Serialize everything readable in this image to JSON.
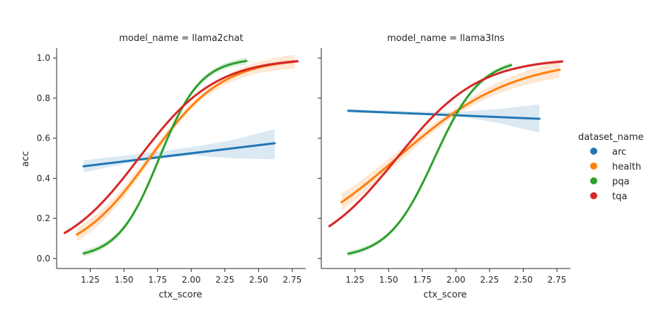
{
  "chart_data": {
    "type": "line",
    "facet_variable": "model_name",
    "hue_variable": "dataset_name",
    "xlabel": "ctx_score",
    "ylabel": "acc",
    "xlim": [
      1.0,
      2.85
    ],
    "ylim": [
      -0.05,
      1.05
    ],
    "xticks": [
      1.25,
      1.5,
      1.75,
      2.0,
      2.25,
      2.5,
      2.75
    ],
    "xtick_labels": [
      "1.25",
      "1.50",
      "1.75",
      "2.00",
      "2.25",
      "2.50",
      "2.75"
    ],
    "yticks": [
      0.0,
      0.2,
      0.4,
      0.6,
      0.8,
      1.0
    ],
    "ytick_labels": [
      "0.0",
      "0.2",
      "0.4",
      "0.6",
      "0.8",
      "1.0"
    ],
    "grid": false,
    "legend": {
      "title": "dataset_name",
      "placement": "right",
      "entries": [
        {
          "label": "arc",
          "color": "#1f77b4"
        },
        {
          "label": "health",
          "color": "#ff7f0e"
        },
        {
          "label": "pqa",
          "color": "#2ca02c"
        },
        {
          "label": "tqa",
          "color": "#d62728"
        }
      ]
    },
    "panels": [
      {
        "title": "model_name = llama2chat",
        "series": [
          {
            "name": "arc",
            "color": "#1f77b4",
            "kind": "linear",
            "x": [
              1.2,
              2.62
            ],
            "y": [
              0.46,
              0.575
            ],
            "band": [
              [
                1.2,
                0.49,
                0.43
              ],
              [
                1.6,
                0.52,
                0.485
              ],
              [
                2.0,
                0.555,
                0.515
              ],
              [
                2.3,
                0.59,
                0.5
              ],
              [
                2.62,
                0.645,
                0.495
              ]
            ]
          },
          {
            "name": "health",
            "color": "#ff7f0e",
            "kind": "logistic",
            "k": 3.7,
            "x0": 1.69,
            "x": [
              1.15,
              2.77
            ],
            "band_halfwidth": 0.025
          },
          {
            "name": "pqa",
            "color": "#2ca02c",
            "kind": "logistic",
            "k": 6.5,
            "x0": 1.762,
            "x": [
              1.2,
              2.41
            ],
            "band_halfwidth": 0.012
          },
          {
            "name": "tqa",
            "color": "#d62728",
            "kind": "logistic",
            "k": 3.5,
            "x0": 1.61,
            "x": [
              1.06,
              2.79
            ],
            "band_halfwidth": 0.006
          }
        ]
      },
      {
        "title": "model_name = llama3Ins",
        "series": [
          {
            "name": "arc",
            "color": "#1f77b4",
            "kind": "linear",
            "x": [
              1.2,
              2.62
            ],
            "y": [
              0.737,
              0.697
            ],
            "band": [
              [
                1.2,
                0.745,
                0.728
              ],
              [
                1.8,
                0.732,
                0.718
              ],
              [
                2.0,
                0.73,
                0.712
              ],
              [
                2.3,
                0.745,
                0.678
              ],
              [
                2.62,
                0.768,
                0.628
              ]
            ]
          },
          {
            "name": "health",
            "color": "#ff7f0e",
            "kind": "logistic",
            "k": 2.3,
            "x0": 1.56,
            "x": [
              1.15,
              2.77
            ],
            "band_halfwidth": 0.03
          },
          {
            "name": "pqa",
            "color": "#2ca02c",
            "kind": "logistic",
            "k": 5.8,
            "x0": 1.84,
            "x": [
              1.2,
              2.41
            ],
            "band_halfwidth": 0.01
          },
          {
            "name": "tqa",
            "color": "#d62728",
            "kind": "logistic",
            "k": 3.3,
            "x0": 1.56,
            "x": [
              1.06,
              2.79
            ],
            "band_halfwidth": 0.006
          }
        ]
      }
    ]
  }
}
